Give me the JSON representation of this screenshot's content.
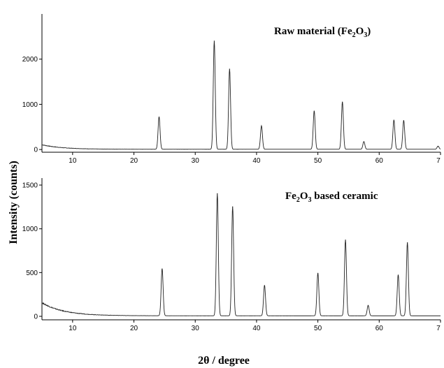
{
  "chart_data": [
    {
      "type": "line",
      "title": "Raw material (Fe2O3)",
      "title_parts": {
        "main": "Raw material (Fe",
        "sub1": "2",
        "mid": "O",
        "sub2": "3",
        "end": ")"
      },
      "xlim": [
        5,
        70
      ],
      "ylim": [
        -60,
        3000
      ],
      "x_ticks": [
        "10",
        "20",
        "30",
        "40",
        "50",
        "60",
        "7"
      ],
      "y_ticks": [
        "0",
        "1000",
        "2000"
      ],
      "y_tick_values": [
        0,
        1000,
        2000
      ],
      "background_start": 100,
      "background_decay": 3.2,
      "peaks": [
        {
          "x": 24.1,
          "y": 720
        },
        {
          "x": 33.1,
          "y": 2400
        },
        {
          "x": 35.6,
          "y": 1780
        },
        {
          "x": 40.8,
          "y": 520
        },
        {
          "x": 49.4,
          "y": 850
        },
        {
          "x": 54.0,
          "y": 1050
        },
        {
          "x": 57.5,
          "y": 170
        },
        {
          "x": 62.4,
          "y": 650
        },
        {
          "x": 64.0,
          "y": 640
        },
        {
          "x": 69.6,
          "y": 70
        }
      ],
      "grid": false
    },
    {
      "type": "line",
      "title": "Fe2O3 based ceramic",
      "title_parts": {
        "main": "Fe",
        "sub1": "2",
        "mid": "O",
        "sub2": "3",
        "end": " based ceramic"
      },
      "xlim": [
        5,
        70
      ],
      "ylim": [
        -40,
        1580
      ],
      "x_ticks": [
        "10",
        "20",
        "30",
        "40",
        "50",
        "60",
        "7"
      ],
      "y_ticks": [
        "0",
        "500",
        "1000",
        "1500"
      ],
      "y_tick_values": [
        0,
        500,
        1000,
        1500
      ],
      "background_start": 150,
      "background_decay": 3.5,
      "peaks": [
        {
          "x": 24.6,
          "y": 540
        },
        {
          "x": 33.6,
          "y": 1400
        },
        {
          "x": 36.1,
          "y": 1250
        },
        {
          "x": 41.3,
          "y": 350
        },
        {
          "x": 50.0,
          "y": 490
        },
        {
          "x": 54.5,
          "y": 870
        },
        {
          "x": 58.2,
          "y": 120
        },
        {
          "x": 63.1,
          "y": 470
        },
        {
          "x": 64.6,
          "y": 840
        }
      ],
      "grid": false
    }
  ],
  "ylabel": "Intensity (counts)",
  "xlabel": "2θ / degree"
}
